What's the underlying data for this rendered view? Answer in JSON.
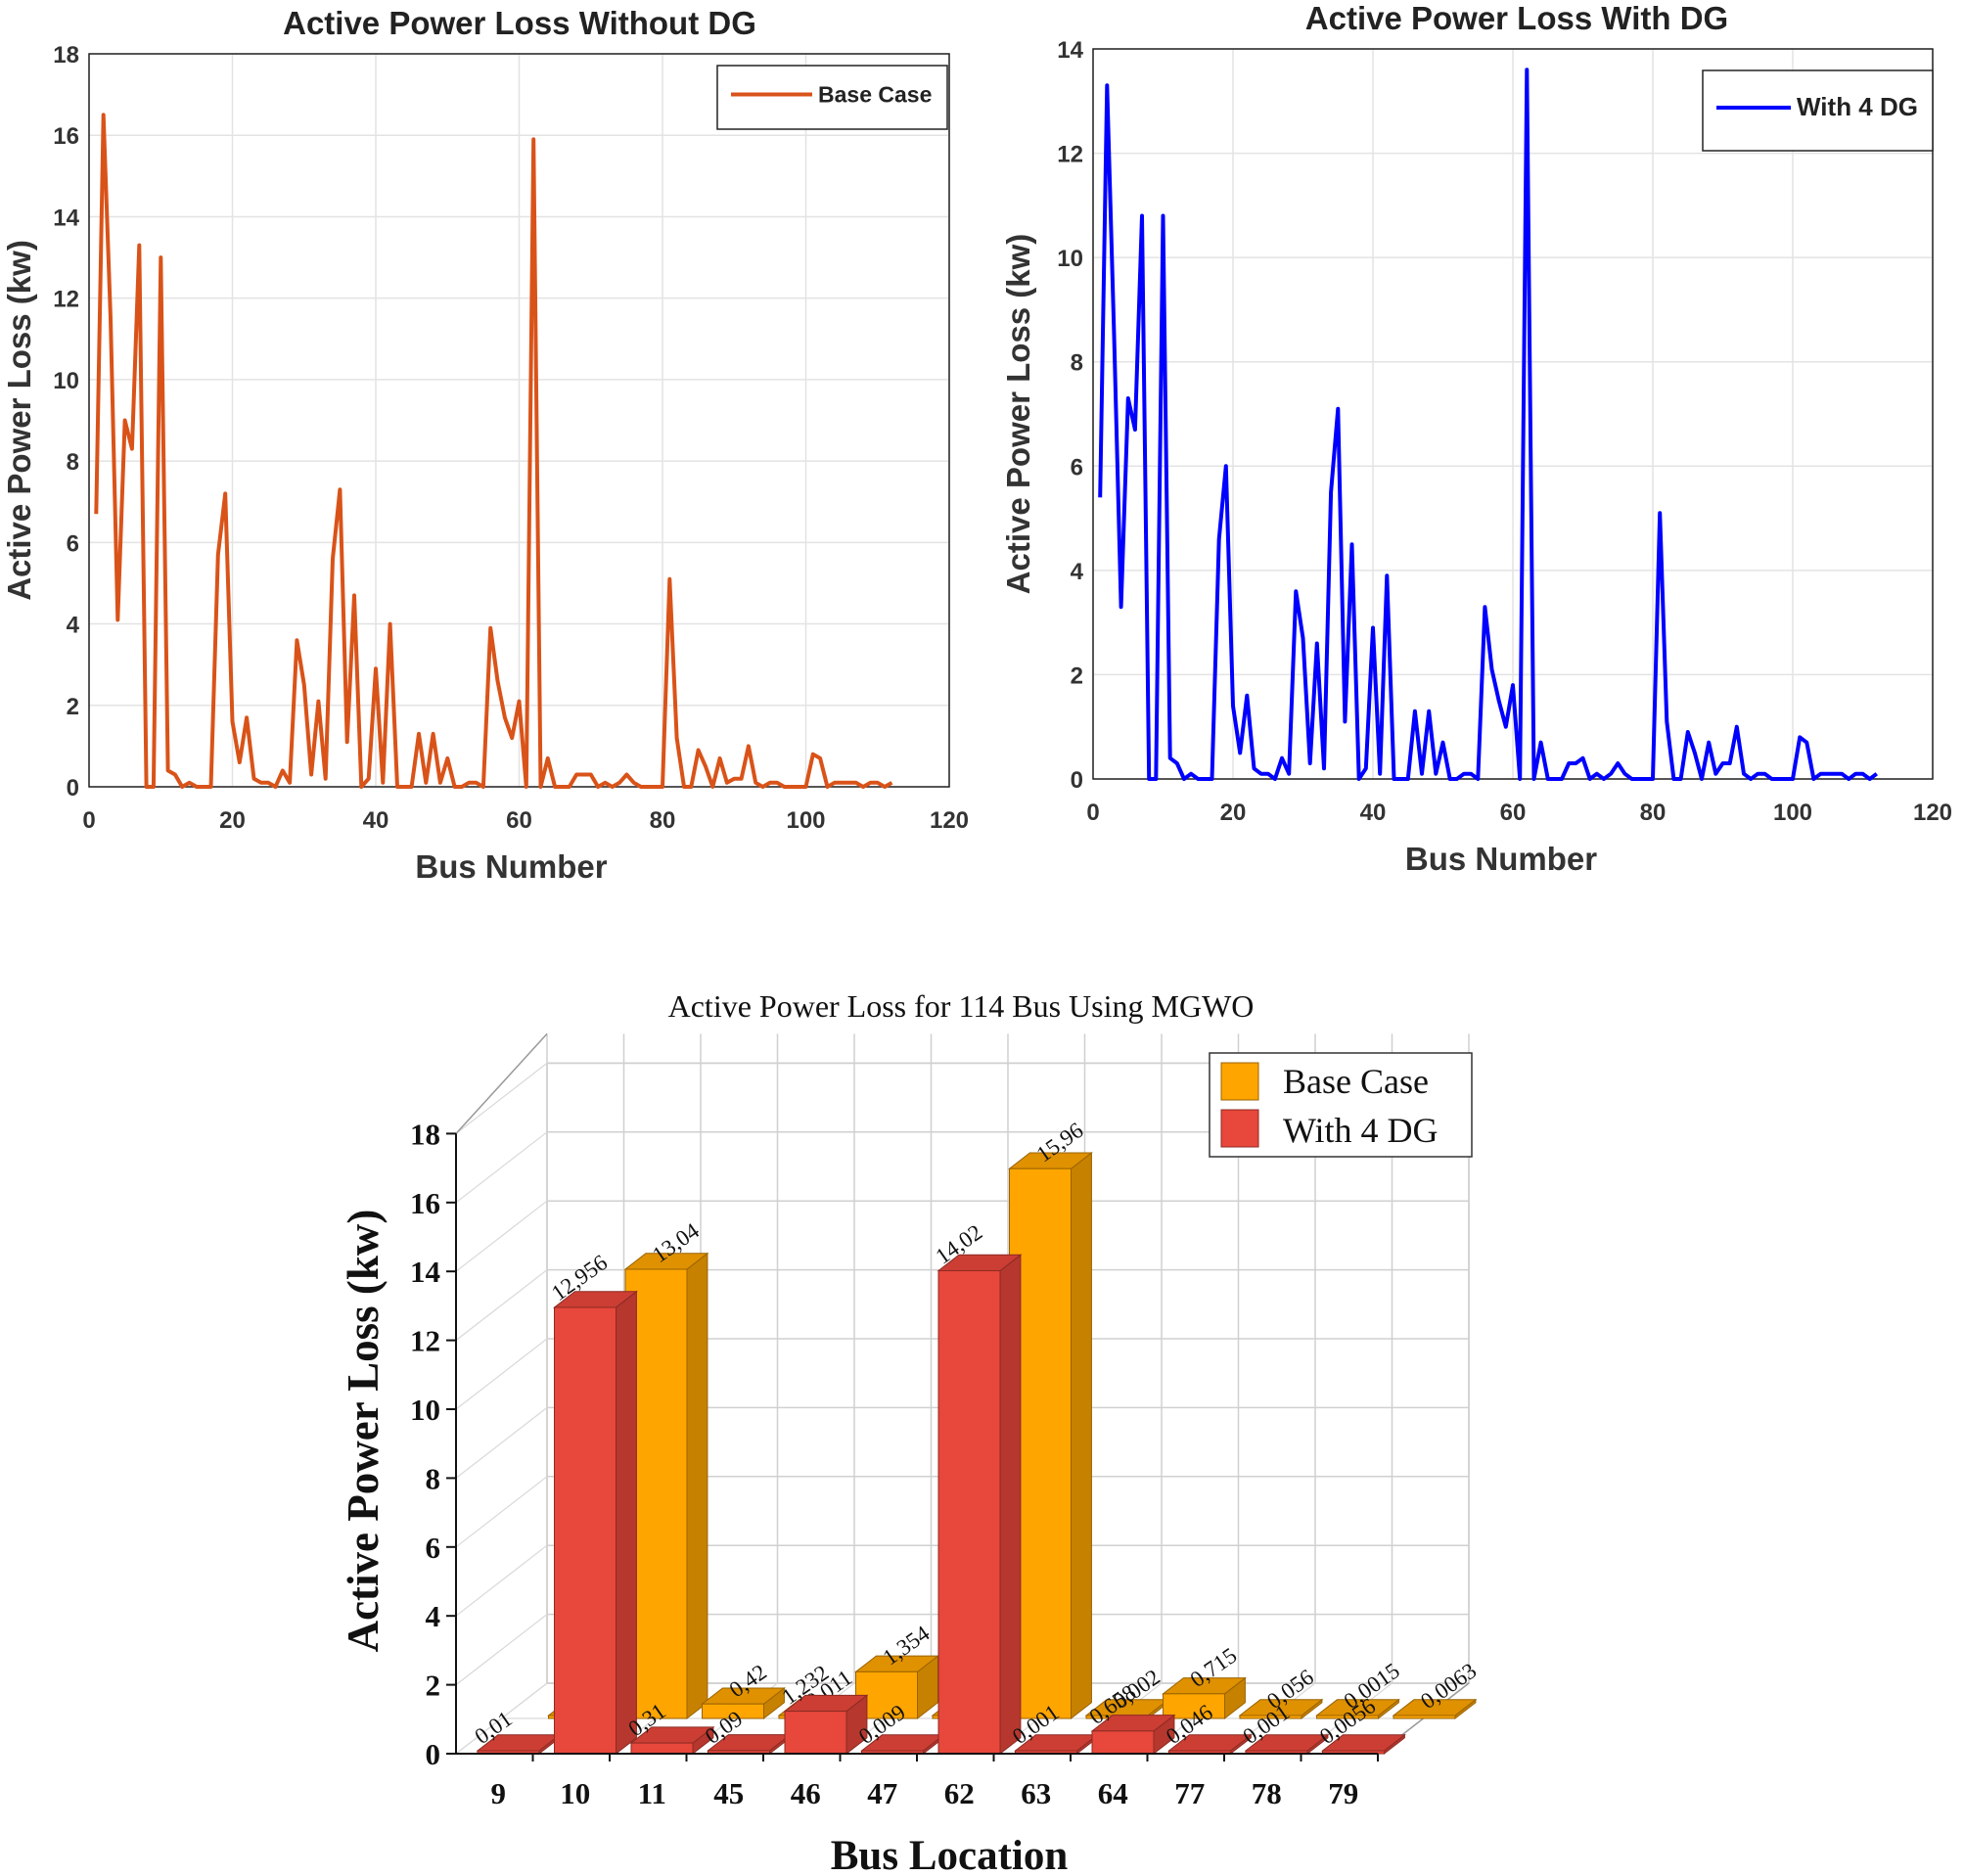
{
  "chart_data": [
    {
      "type": "line",
      "title": "Active Power Loss Without DG",
      "xlabel": "Bus Number",
      "ylabel": "Active Power Loss (kw)",
      "xlim": [
        0,
        120
      ],
      "ylim": [
        0,
        18
      ],
      "xticks": [
        0,
        20,
        40,
        60,
        80,
        100,
        120
      ],
      "yticks": [
        0,
        2,
        4,
        6,
        8,
        10,
        12,
        14,
        16,
        18
      ],
      "grid": true,
      "legend_position": "top-right",
      "color": "#d95319",
      "series": [
        {
          "name": "Base Case",
          "x": [
            1,
            2,
            3,
            4,
            5,
            6,
            7,
            8,
            9,
            10,
            11,
            12,
            13,
            14,
            15,
            16,
            17,
            18,
            19,
            20,
            21,
            22,
            23,
            24,
            25,
            26,
            27,
            28,
            29,
            30,
            31,
            32,
            33,
            34,
            35,
            36,
            37,
            38,
            39,
            40,
            41,
            42,
            43,
            44,
            45,
            46,
            47,
            48,
            49,
            50,
            51,
            52,
            53,
            54,
            55,
            56,
            57,
            58,
            59,
            60,
            61,
            62,
            63,
            64,
            65,
            66,
            67,
            68,
            69,
            70,
            71,
            72,
            73,
            74,
            75,
            76,
            77,
            78,
            79,
            80,
            81,
            82,
            83,
            84,
            85,
            86,
            87,
            88,
            89,
            90,
            91,
            92,
            93,
            94,
            95,
            96,
            97,
            98,
            99,
            100,
            101,
            102,
            103,
            104,
            105,
            106,
            107,
            108,
            109,
            110,
            111,
            112
          ],
          "y": [
            6.7,
            16.5,
            11.5,
            4.1,
            9.0,
            8.3,
            13.3,
            0.0,
            0.0,
            13.0,
            0.4,
            0.3,
            0.0,
            0.1,
            0.0,
            0.0,
            0.0,
            5.7,
            7.2,
            1.6,
            0.6,
            1.7,
            0.2,
            0.1,
            0.1,
            0.0,
            0.4,
            0.1,
            3.6,
            2.5,
            0.3,
            2.1,
            0.2,
            5.6,
            7.3,
            1.1,
            4.7,
            0.0,
            0.2,
            2.9,
            0.1,
            4.0,
            0.0,
            0.0,
            0.0,
            1.3,
            0.1,
            1.3,
            0.1,
            0.7,
            0.0,
            0.0,
            0.1,
            0.1,
            0.0,
            3.9,
            2.6,
            1.7,
            1.2,
            2.1,
            0.0,
            15.9,
            0.0,
            0.7,
            0.0,
            0.0,
            0.0,
            0.3,
            0.3,
            0.3,
            0.0,
            0.1,
            0.0,
            0.1,
            0.3,
            0.1,
            0.0,
            0.0,
            0.0,
            0.0,
            5.1,
            1.2,
            0.0,
            0.0,
            0.9,
            0.5,
            0.0,
            0.7,
            0.1,
            0.2,
            0.2,
            1.0,
            0.1,
            0.0,
            0.1,
            0.1,
            0.0,
            0.0,
            0.0,
            0.0,
            0.8,
            0.7,
            0.0,
            0.1,
            0.1,
            0.1,
            0.1,
            0.0,
            0.1,
            0.1,
            0.0,
            0.1
          ]
        }
      ]
    },
    {
      "type": "line",
      "title": "Active Power Loss With DG",
      "xlabel": "Bus Number",
      "ylabel": "Active Power Loss (kw)",
      "xlim": [
        0,
        120
      ],
      "ylim": [
        0,
        14
      ],
      "xticks": [
        0,
        20,
        40,
        60,
        80,
        100,
        120
      ],
      "yticks": [
        0,
        2,
        4,
        6,
        8,
        10,
        12,
        14
      ],
      "grid": true,
      "legend_position": "top-right",
      "color": "#0000ff",
      "series": [
        {
          "name": "With 4 DG",
          "x": [
            1,
            2,
            3,
            4,
            5,
            6,
            7,
            8,
            9,
            10,
            11,
            12,
            13,
            14,
            15,
            16,
            17,
            18,
            19,
            20,
            21,
            22,
            23,
            24,
            25,
            26,
            27,
            28,
            29,
            30,
            31,
            32,
            33,
            34,
            35,
            36,
            37,
            38,
            39,
            40,
            41,
            42,
            43,
            44,
            45,
            46,
            47,
            48,
            49,
            50,
            51,
            52,
            53,
            54,
            55,
            56,
            57,
            58,
            59,
            60,
            61,
            62,
            63,
            64,
            65,
            66,
            67,
            68,
            69,
            70,
            71,
            72,
            73,
            74,
            75,
            76,
            77,
            78,
            79,
            80,
            81,
            82,
            83,
            84,
            85,
            86,
            87,
            88,
            89,
            90,
            91,
            92,
            93,
            94,
            95,
            96,
            97,
            98,
            99,
            100,
            101,
            102,
            103,
            104,
            105,
            106,
            107,
            108,
            109,
            110,
            111,
            112
          ],
          "y": [
            5.4,
            13.3,
            8.5,
            3.3,
            7.3,
            6.7,
            10.8,
            0.0,
            0.0,
            10.8,
            0.4,
            0.3,
            0.0,
            0.1,
            0.0,
            0.0,
            0.0,
            4.6,
            6.0,
            1.4,
            0.5,
            1.6,
            0.2,
            0.1,
            0.1,
            0.0,
            0.4,
            0.1,
            3.6,
            2.7,
            0.3,
            2.6,
            0.2,
            5.5,
            7.1,
            1.1,
            4.5,
            0.0,
            0.2,
            2.9,
            0.1,
            3.9,
            0.0,
            0.0,
            0.0,
            1.3,
            0.1,
            1.3,
            0.1,
            0.7,
            0.0,
            0.0,
            0.1,
            0.1,
            0.0,
            3.3,
            2.1,
            1.5,
            1.0,
            1.8,
            0.0,
            13.6,
            0.0,
            0.7,
            0.0,
            0.0,
            0.0,
            0.3,
            0.3,
            0.4,
            0.0,
            0.1,
            0.0,
            0.1,
            0.3,
            0.1,
            0.0,
            0.0,
            0.0,
            0.0,
            5.1,
            1.1,
            0.0,
            0.0,
            0.9,
            0.5,
            0.0,
            0.7,
            0.1,
            0.3,
            0.3,
            1.0,
            0.1,
            0.0,
            0.1,
            0.1,
            0.0,
            0.0,
            0.0,
            0.0,
            0.8,
            0.7,
            0.0,
            0.1,
            0.1,
            0.1,
            0.1,
            0.0,
            0.1,
            0.1,
            0.0,
            0.1
          ]
        }
      ]
    },
    {
      "type": "bar",
      "title": "Active Power Loss for 114 Bus Using MGWO",
      "xlabel": "Bus Location",
      "ylabel": "Active Power Loss (kw)",
      "ylim": [
        0,
        18
      ],
      "yticks": [
        0,
        2,
        4,
        6,
        8,
        10,
        12,
        14,
        16,
        18
      ],
      "grid": true,
      "legend_position": "top-right",
      "categories": [
        "9",
        "10",
        "11",
        "45",
        "46",
        "47",
        "62",
        "63",
        "64",
        "77",
        "78",
        "79"
      ],
      "series": [
        {
          "name": "Base Case",
          "color": "#ffa500",
          "values": [
            0,
            13.04,
            0.42,
            0.011,
            1.354,
            0,
            15.96,
            0.002,
            0.715,
            0.056,
            0.0015,
            0.0063
          ],
          "labels": [
            "0",
            "13,04",
            "0,42",
            "0,011",
            "1,354",
            "0",
            "15,96",
            "0,002",
            "0,715",
            "0,056",
            "0,0015",
            "0,0063"
          ]
        },
        {
          "name": "With 4 DG",
          "color": "#e8473b",
          "values": [
            0.01,
            12.956,
            0.31,
            0.09,
            1.232,
            0.009,
            14.02,
            0.001,
            0.658,
            0.046,
            0.001,
            0.0056
          ],
          "labels": [
            "0,01",
            "12,956",
            "0,31",
            "0,09",
            "1,232",
            "0,009",
            "14,02",
            "0,001",
            "0,658",
            "0,046",
            "0,001",
            "0,0056"
          ]
        }
      ]
    }
  ]
}
